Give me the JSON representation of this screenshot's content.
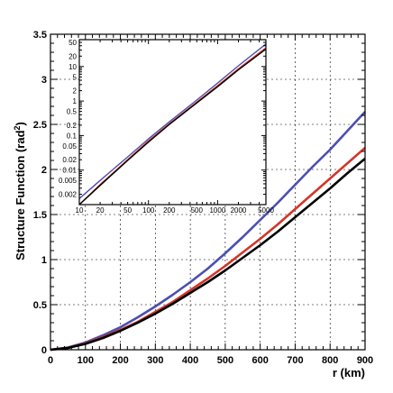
{
  "chart_data": [
    {
      "type": "line",
      "xlabel": "r (km)",
      "ylabel_main": "Structure Function (rad",
      "ylabel_sup": "2",
      "ylabel_close": ")",
      "xlim": [
        0,
        900
      ],
      "ylim": [
        0,
        3.5
      ],
      "x_ticks": [
        0,
        100,
        200,
        300,
        400,
        500,
        600,
        700,
        800,
        900
      ],
      "y_ticks": [
        0,
        0.5,
        1,
        1.5,
        2,
        2.5,
        3,
        3.5
      ],
      "grid": true,
      "series": [
        {
          "color": "#4a4fb0",
          "x": [
            0,
            50,
            100,
            150,
            200,
            250,
            300,
            350,
            400,
            450,
            500,
            550,
            600,
            650,
            700,
            750,
            800,
            850,
            900
          ],
          "y": [
            0,
            0.025,
            0.08,
            0.16,
            0.25,
            0.36,
            0.48,
            0.61,
            0.75,
            0.9,
            1.07,
            1.25,
            1.44,
            1.63,
            1.83,
            2.03,
            2.22,
            2.43,
            2.64
          ]
        },
        {
          "color": "#d2362a",
          "x": [
            0,
            50,
            100,
            150,
            200,
            250,
            300,
            350,
            400,
            450,
            500,
            550,
            600,
            650,
            700,
            750,
            800,
            850,
            900
          ],
          "y": [
            0,
            0.02,
            0.07,
            0.14,
            0.22,
            0.31,
            0.42,
            0.53,
            0.66,
            0.79,
            0.93,
            1.08,
            1.23,
            1.39,
            1.56,
            1.73,
            1.9,
            2.07,
            2.24
          ]
        },
        {
          "color": "#000000",
          "x": [
            0,
            50,
            100,
            150,
            200,
            250,
            300,
            350,
            400,
            450,
            500,
            550,
            600,
            650,
            700,
            750,
            800,
            850,
            900
          ],
          "y": [
            0,
            0.02,
            0.065,
            0.13,
            0.21,
            0.3,
            0.4,
            0.51,
            0.63,
            0.75,
            0.88,
            1.02,
            1.16,
            1.31,
            1.47,
            1.63,
            1.79,
            1.96,
            2.12
          ]
        }
      ]
    },
    {
      "type": "line",
      "scale": "log-log",
      "xlim": [
        10,
        5000
      ],
      "ylim": [
        0.001,
        60
      ],
      "x_ticks": [
        10,
        20,
        50,
        100,
        200,
        500,
        1000,
        2000,
        5000
      ],
      "x_tick_labels": [
        "10",
        "20",
        "50",
        "100",
        "200",
        "500",
        "1000",
        "2000",
        "5000"
      ],
      "y_ticks": [
        50,
        20,
        10,
        5,
        2,
        1,
        0.5,
        0.2,
        0.1,
        0.05,
        0.02,
        0.01,
        0.005,
        0.002
      ],
      "y_tick_labels": [
        "50",
        "20",
        "10",
        "5",
        "2",
        "1",
        "0.5",
        "0.2",
        "0.1",
        "0.05",
        "0.02",
        "0.01",
        "0.005",
        "0.002"
      ],
      "series": [
        {
          "color": "#4a4fb0",
          "x": [
            10,
            20,
            50,
            100,
            200,
            500,
            1000,
            2000,
            5000
          ],
          "y": [
            0.0015,
            0.005,
            0.024,
            0.08,
            0.25,
            1.07,
            3.3,
            10.5,
            45
          ]
        },
        {
          "color": "#d2362a",
          "x": [
            10,
            20,
            50,
            100,
            200,
            500,
            1000,
            2000,
            5000
          ],
          "y": [
            0.001,
            0.0038,
            0.02,
            0.07,
            0.22,
            0.93,
            2.8,
            8.6,
            35
          ]
        },
        {
          "color": "#000000",
          "x": [
            10,
            20,
            50,
            100,
            200,
            500,
            1000,
            2000,
            5000
          ],
          "y": [
            0.001,
            0.0036,
            0.019,
            0.065,
            0.21,
            0.88,
            2.6,
            8.0,
            32
          ]
        }
      ]
    }
  ]
}
